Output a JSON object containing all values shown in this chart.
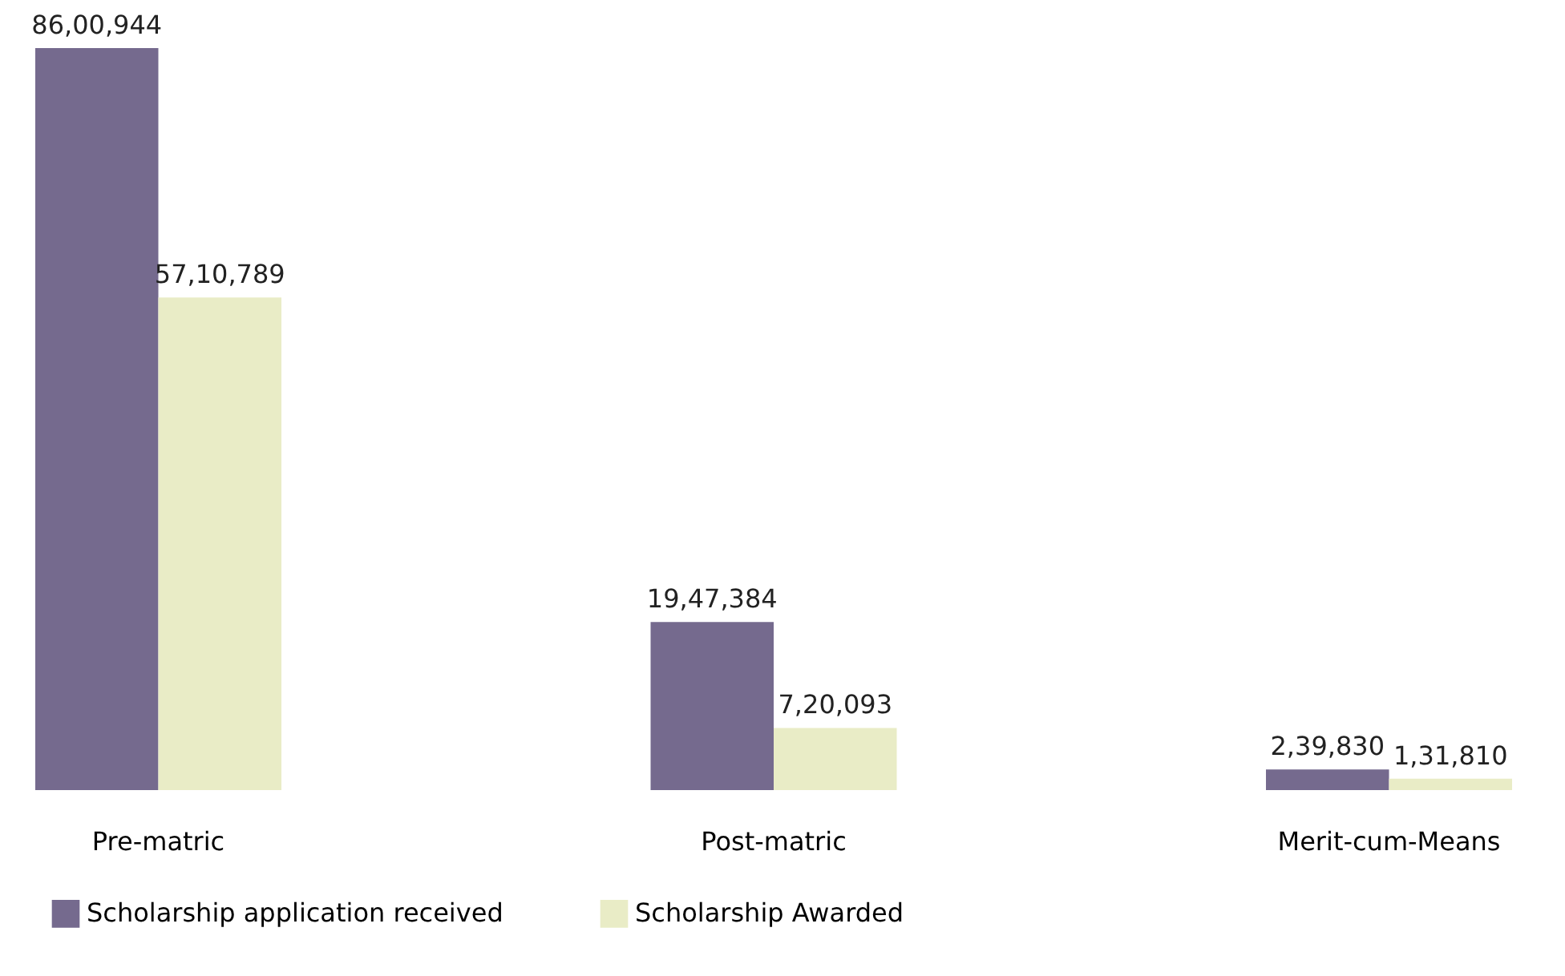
{
  "chart_data": {
    "type": "bar",
    "categories": [
      "Pre-matric",
      "Post-matric",
      "Merit-cum-Means"
    ],
    "series": [
      {
        "name": "Scholarship application received",
        "color": "#756a8e",
        "values": [
          8600944,
          1947384,
          239830
        ],
        "value_labels": [
          "86,00,944",
          "19,47,384",
          "2,39,830"
        ]
      },
      {
        "name": "Scholarship Awarded",
        "color": "#e9ecc6",
        "values": [
          5710789,
          720093,
          131810
        ],
        "value_labels": [
          "57,10,789",
          "7,20,093",
          "1,31,810"
        ]
      }
    ],
    "legend": "bottom",
    "grid": false
  }
}
